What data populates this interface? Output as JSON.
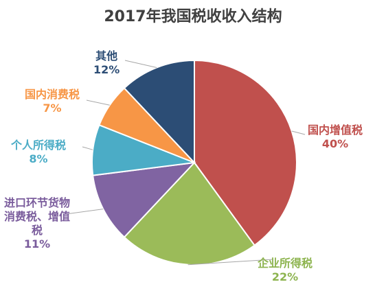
{
  "chart_data": {
    "type": "pie",
    "title": "2017年我国税收收入结构",
    "slices": [
      {
        "name": "国内增值税",
        "value": 40,
        "label": "40%",
        "color": "#c0504d"
      },
      {
        "name": "企业所得税",
        "value": 22,
        "label": "22%",
        "color": "#9bbb59"
      },
      {
        "name": "进口环节货物消费税、增值税",
        "name_lines": [
          "进口环节货物",
          "消费税、增值",
          "税"
        ],
        "value": 11,
        "label": "11%",
        "color": "#8064a2"
      },
      {
        "name": "个人所得税",
        "value": 8,
        "label": "8%",
        "color": "#4bacc6"
      },
      {
        "name": "国内消费税",
        "value": 7,
        "label": "7%",
        "color": "#f79646"
      },
      {
        "name": "其他",
        "value": 12,
        "label": "12%",
        "color": "#2c4d75"
      }
    ],
    "start_angle_deg": 0,
    "direction": "clockwise",
    "legend": "none",
    "labels": "outside-with-leader-lines"
  }
}
